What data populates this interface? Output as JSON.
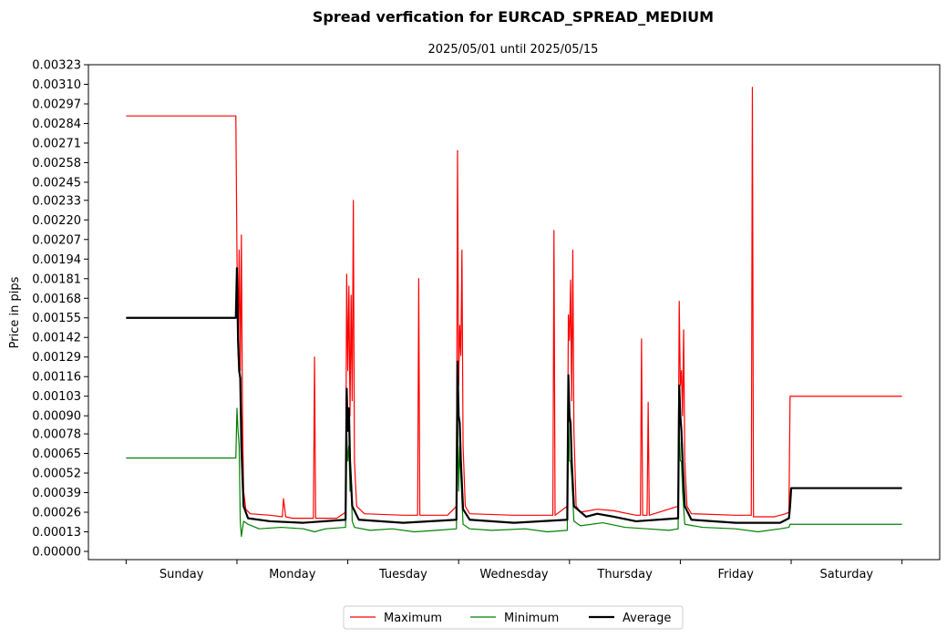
{
  "chart_data": {
    "type": "line",
    "title": "Spread verfication for EURCAD_SPREAD_MEDIUM",
    "subtitle": "2025/05/01 until 2025/05/15",
    "ylabel": "Price in pips",
    "xlabel": "",
    "ylim": [
      0.0,
      0.00323
    ],
    "y_ticks": [
      "0.00000",
      "0.00013",
      "0.00026",
      "0.00039",
      "0.00052",
      "0.00065",
      "0.00078",
      "0.00090",
      "0.00103",
      "0.00116",
      "0.00129",
      "0.00142",
      "0.00155",
      "0.00168",
      "0.00181",
      "0.00194",
      "0.00207",
      "0.00220",
      "0.00233",
      "0.00245",
      "0.00258",
      "0.00271",
      "0.00284",
      "0.00297",
      "0.00310",
      "0.00323"
    ],
    "categories": [
      "Sunday",
      "Monday",
      "Tuesday",
      "Wednesday",
      "Thursday",
      "Friday",
      "Saturday"
    ],
    "xlim": [
      -0.34,
      7.34
    ],
    "grid": false,
    "legend_position": "bottom-center",
    "series": [
      {
        "name": "Maximum",
        "color": "#ff0000",
        "width": 1.2,
        "points": [
          [
            0,
            0.00289
          ],
          [
            0.99,
            0.00289
          ],
          [
            1.0,
            0.002
          ],
          [
            1.01,
            0.0013
          ],
          [
            1.02,
            0.002
          ],
          [
            1.03,
            0.0012
          ],
          [
            1.04,
            0.0021
          ],
          [
            1.05,
            0.0009
          ],
          [
            1.06,
            0.0004
          ],
          [
            1.08,
            0.00028
          ],
          [
            1.12,
            0.00025
          ],
          [
            1.3,
            0.00024
          ],
          [
            1.41,
            0.00023
          ],
          [
            1.42,
            0.00035
          ],
          [
            1.44,
            0.00023
          ],
          [
            1.5,
            0.00022
          ],
          [
            1.69,
            0.00022
          ],
          [
            1.7,
            0.00129
          ],
          [
            1.71,
            0.00022
          ],
          [
            1.9,
            0.00022
          ],
          [
            1.98,
            0.00026
          ],
          [
            1.99,
            0.00184
          ],
          [
            2.0,
            0.0012
          ],
          [
            2.01,
            0.00176
          ],
          [
            2.02,
            0.0009
          ],
          [
            2.03,
            0.0017
          ],
          [
            2.04,
            0.001
          ],
          [
            2.05,
            0.00233
          ],
          [
            2.06,
            0.0006
          ],
          [
            2.08,
            0.0003
          ],
          [
            2.15,
            0.00025
          ],
          [
            2.5,
            0.00024
          ],
          [
            2.63,
            0.00024
          ],
          [
            2.64,
            0.00181
          ],
          [
            2.65,
            0.00024
          ],
          [
            2.9,
            0.00024
          ],
          [
            2.98,
            0.0003
          ],
          [
            2.99,
            0.00266
          ],
          [
            3.0,
            0.0011
          ],
          [
            3.01,
            0.0015
          ],
          [
            3.02,
            0.0013
          ],
          [
            3.03,
            0.002
          ],
          [
            3.04,
            0.0007
          ],
          [
            3.06,
            0.0003
          ],
          [
            3.1,
            0.00025
          ],
          [
            3.5,
            0.00024
          ],
          [
            3.85,
            0.00024
          ],
          [
            3.86,
            0.00213
          ],
          [
            3.87,
            0.00024
          ],
          [
            3.98,
            0.0003
          ],
          [
            3.99,
            0.00157
          ],
          [
            4.0,
            0.0014
          ],
          [
            4.01,
            0.0018
          ],
          [
            4.02,
            0.001
          ],
          [
            4.03,
            0.002
          ],
          [
            4.04,
            0.0008
          ],
          [
            4.06,
            0.0003
          ],
          [
            4.1,
            0.00026
          ],
          [
            4.25,
            0.00028
          ],
          [
            4.4,
            0.00027
          ],
          [
            4.6,
            0.00024
          ],
          [
            4.64,
            0.00024
          ],
          [
            4.65,
            0.00141
          ],
          [
            4.66,
            0.00024
          ],
          [
            4.7,
            0.00024
          ],
          [
            4.71,
            0.00099
          ],
          [
            4.72,
            0.00024
          ],
          [
            4.98,
            0.0003
          ],
          [
            4.99,
            0.00166
          ],
          [
            5.0,
            0.0011
          ],
          [
            5.01,
            0.0012
          ],
          [
            5.02,
            0.0009
          ],
          [
            5.03,
            0.00147
          ],
          [
            5.04,
            0.0006
          ],
          [
            5.06,
            0.0003
          ],
          [
            5.1,
            0.00025
          ],
          [
            5.5,
            0.00024
          ],
          [
            5.64,
            0.00024
          ],
          [
            5.65,
            0.00308
          ],
          [
            5.66,
            0.00023
          ],
          [
            5.85,
            0.00023
          ],
          [
            5.95,
            0.00025
          ],
          [
            5.98,
            0.00026
          ],
          [
            5.99,
            0.00103
          ],
          [
            7.0,
            0.00103
          ]
        ]
      },
      {
        "name": "Minimum",
        "color": "#008000",
        "width": 1.2,
        "points": [
          [
            0,
            0.00062
          ],
          [
            0.99,
            0.00062
          ],
          [
            1.0,
            0.00095
          ],
          [
            1.01,
            0.0008
          ],
          [
            1.02,
            0.0007
          ],
          [
            1.03,
            0.0002
          ],
          [
            1.04,
            0.0001
          ],
          [
            1.06,
            0.0002
          ],
          [
            1.1,
            0.00018
          ],
          [
            1.2,
            0.00015
          ],
          [
            1.4,
            0.00016
          ],
          [
            1.6,
            0.00015
          ],
          [
            1.7,
            0.00013
          ],
          [
            1.8,
            0.00015
          ],
          [
            1.98,
            0.00016
          ],
          [
            1.99,
            0.0008
          ],
          [
            2.0,
            0.0006
          ],
          [
            2.01,
            0.0007
          ],
          [
            2.02,
            0.0004
          ],
          [
            2.03,
            0.0005
          ],
          [
            2.04,
            0.0002
          ],
          [
            2.06,
            0.00016
          ],
          [
            2.2,
            0.00014
          ],
          [
            2.4,
            0.00015
          ],
          [
            2.6,
            0.00013
          ],
          [
            2.8,
            0.00014
          ],
          [
            2.98,
            0.00015
          ],
          [
            2.99,
            0.0009
          ],
          [
            3.0,
            0.0004
          ],
          [
            3.01,
            0.0007
          ],
          [
            3.02,
            0.0005
          ],
          [
            3.04,
            0.00018
          ],
          [
            3.1,
            0.00015
          ],
          [
            3.3,
            0.00014
          ],
          [
            3.6,
            0.00015
          ],
          [
            3.8,
            0.00013
          ],
          [
            3.98,
            0.00014
          ],
          [
            3.99,
            0.0009
          ],
          [
            4.0,
            0.0006
          ],
          [
            4.01,
            0.0006
          ],
          [
            4.02,
            0.0005
          ],
          [
            4.04,
            0.0002
          ],
          [
            4.1,
            0.00017
          ],
          [
            4.3,
            0.00019
          ],
          [
            4.5,
            0.00016
          ],
          [
            4.7,
            0.00015
          ],
          [
            4.9,
            0.00014
          ],
          [
            4.98,
            0.00015
          ],
          [
            4.99,
            0.0008
          ],
          [
            5.0,
            0.0006
          ],
          [
            5.01,
            0.0006
          ],
          [
            5.02,
            0.0004
          ],
          [
            5.04,
            0.00018
          ],
          [
            5.2,
            0.00016
          ],
          [
            5.5,
            0.00015
          ],
          [
            5.7,
            0.00013
          ],
          [
            5.9,
            0.00015
          ],
          [
            5.98,
            0.00016
          ],
          [
            5.99,
            0.00018
          ],
          [
            7.0,
            0.00018
          ]
        ]
      },
      {
        "name": "Average",
        "color": "#000000",
        "width": 2.2,
        "points": [
          [
            0,
            0.00155
          ],
          [
            0.99,
            0.00155
          ],
          [
            1.0,
            0.00188
          ],
          [
            1.01,
            0.0014
          ],
          [
            1.02,
            0.0012
          ],
          [
            1.03,
            0.00115
          ],
          [
            1.04,
            0.0007
          ],
          [
            1.06,
            0.0003
          ],
          [
            1.1,
            0.00022
          ],
          [
            1.3,
            0.0002
          ],
          [
            1.6,
            0.00019
          ],
          [
            1.98,
            0.00021
          ],
          [
            1.99,
            0.00108
          ],
          [
            2.0,
            0.0008
          ],
          [
            2.01,
            0.00095
          ],
          [
            2.02,
            0.0006
          ],
          [
            2.04,
            0.0003
          ],
          [
            2.1,
            0.00021
          ],
          [
            2.5,
            0.00019
          ],
          [
            2.98,
            0.00021
          ],
          [
            2.99,
            0.00126
          ],
          [
            3.0,
            0.0009
          ],
          [
            3.01,
            0.00085
          ],
          [
            3.02,
            0.0006
          ],
          [
            3.04,
            0.00028
          ],
          [
            3.1,
            0.00021
          ],
          [
            3.5,
            0.00019
          ],
          [
            3.98,
            0.00021
          ],
          [
            3.99,
            0.00117
          ],
          [
            4.0,
            0.0009
          ],
          [
            4.01,
            0.00085
          ],
          [
            4.02,
            0.0006
          ],
          [
            4.04,
            0.0003
          ],
          [
            4.15,
            0.00023
          ],
          [
            4.25,
            0.00025
          ],
          [
            4.4,
            0.00023
          ],
          [
            4.6,
            0.0002
          ],
          [
            4.98,
            0.00022
          ],
          [
            4.99,
            0.0011
          ],
          [
            5.0,
            0.0009
          ],
          [
            5.01,
            0.0008
          ],
          [
            5.02,
            0.0006
          ],
          [
            5.04,
            0.0003
          ],
          [
            5.1,
            0.00021
          ],
          [
            5.5,
            0.00019
          ],
          [
            5.9,
            0.00019
          ],
          [
            5.98,
            0.00022
          ],
          [
            5.99,
            0.0003
          ],
          [
            6.0,
            0.00042
          ],
          [
            7.0,
            0.00042
          ]
        ]
      }
    ]
  }
}
